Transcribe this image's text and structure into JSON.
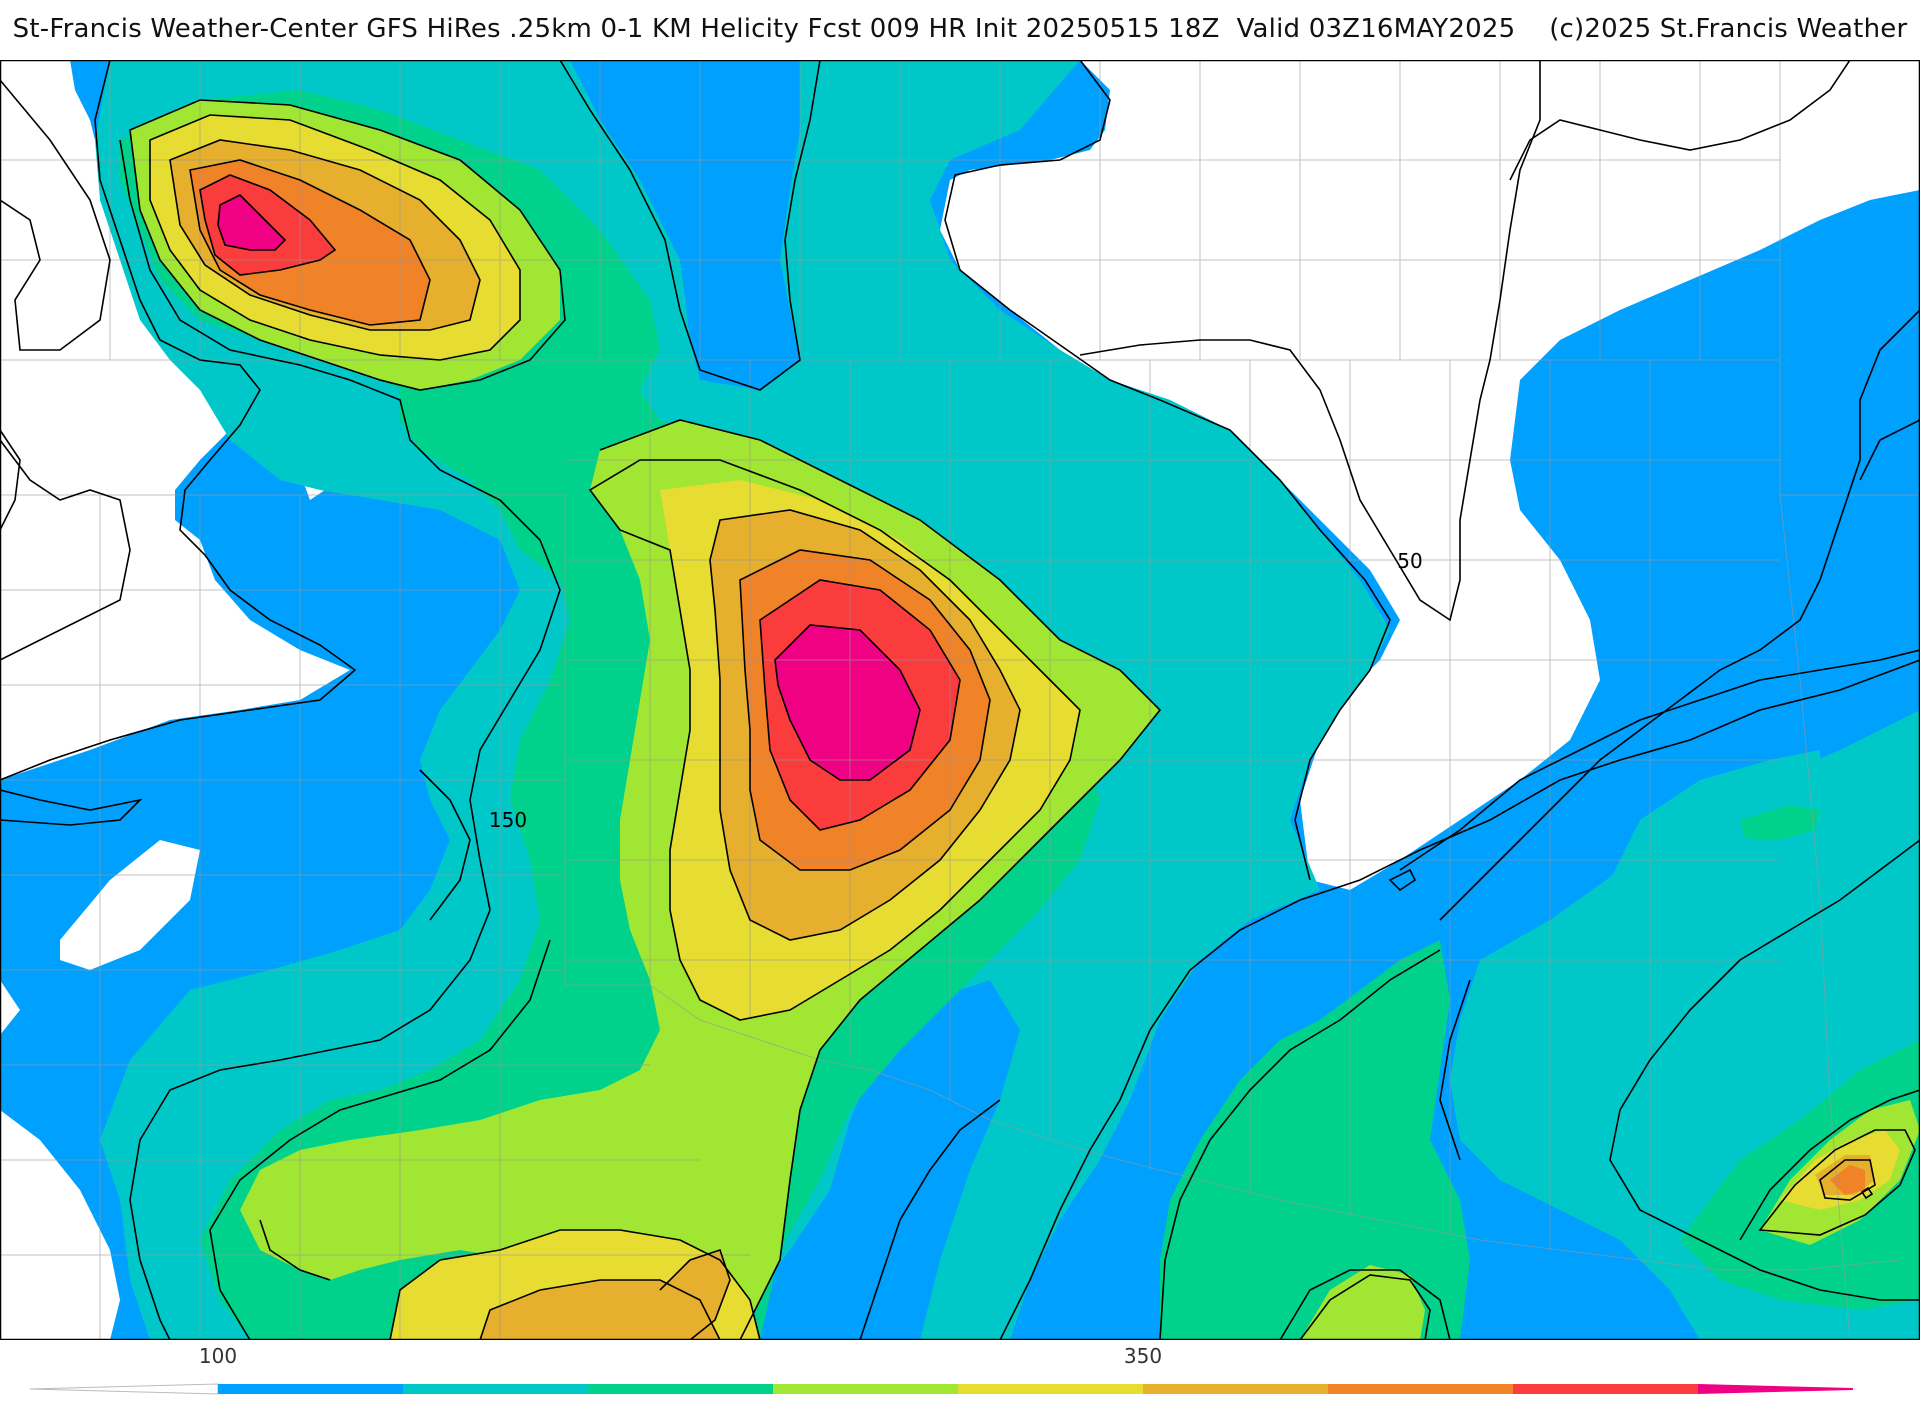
{
  "header": {
    "title": "St-Francis Weather-Center GFS HiRes .25km 0-1 KM Helicity Fcst 009 HR Init 20250515 18Z  Valid 03Z16MAY2025    (c)2025 St.Francis Weather"
  },
  "map": {
    "variable": "0-1 KM Helicity",
    "contour_labels": [
      "50",
      "150"
    ],
    "colors": {
      "below_min": "#ffffff",
      "band_75_100": "#00a0ff",
      "band_100_150": "#00c8c8",
      "band_150_200": "#00d28c",
      "band_200_250": "#a0e632",
      "band_250_300": "#e6dc32",
      "band_300_350": "#e6af2d",
      "band_350_400": "#f08228",
      "band_400_450": "#fa3c3c",
      "band_above_450": "#f00082",
      "contour": "#000000",
      "boundary": "#999999"
    }
  },
  "colorbar": {
    "tick_labels": [
      "100",
      "350"
    ],
    "colors": [
      "#00a0ff",
      "#00c8c8",
      "#00d28c",
      "#a0e632",
      "#e6dc32",
      "#e6af2d",
      "#f08228",
      "#fa3c3c",
      "#f00082"
    ]
  }
}
